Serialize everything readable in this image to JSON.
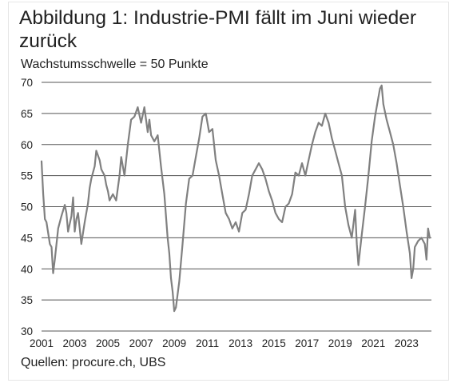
{
  "title": "Abbildung 1: Industrie-PMI fällt im Juni wieder zurück",
  "subtitle": "Wachstumsschwelle = 50 Punkte",
  "source": "Quellen: procure.ch, UBS",
  "colors": {
    "line": "#808080",
    "grid": "#555555",
    "text": "#222222"
  },
  "chart_data": {
    "type": "line",
    "title": "Abbildung 1: Industrie-PMI fällt im Juni wieder zurück",
    "subtitle": "Wachstumsschwelle = 50 Punkte",
    "xlabel": "",
    "ylabel": "",
    "xlim": [
      2001,
      2024.5
    ],
    "ylim": [
      30,
      70
    ],
    "y_ticks": [
      30,
      35,
      40,
      45,
      50,
      55,
      60,
      65,
      70
    ],
    "x_ticks": [
      2001,
      2003,
      2005,
      2007,
      2009,
      2011,
      2013,
      2015,
      2017,
      2019,
      2021,
      2023
    ],
    "grid": "horizontal",
    "legend": "none",
    "series": [
      {
        "x": [
          2001.0,
          2001.1,
          2001.2,
          2001.3,
          2001.5,
          2001.6,
          2001.7,
          2001.8,
          2002.0,
          2002.2,
          2002.4,
          2002.5,
          2002.6,
          2002.8,
          2002.9,
          2003.0,
          2003.1,
          2003.2,
          2003.4,
          2003.6,
          2003.8,
          2003.9,
          2004.0,
          2004.1,
          2004.2,
          2004.3,
          2004.5,
          2004.6,
          2004.8,
          2004.9,
          2005.0,
          2005.1,
          2005.3,
          2005.5,
          2005.7,
          2005.8,
          2006.0,
          2006.2,
          2006.4,
          2006.6,
          2006.8,
          2007.0,
          2007.2,
          2007.4,
          2007.5,
          2007.6,
          2007.8,
          2008.0,
          2008.2,
          2008.4,
          2008.6,
          2008.7,
          2008.8,
          2008.9,
          2009.0,
          2009.1,
          2009.3,
          2009.5,
          2009.7,
          2009.9,
          2010.1,
          2010.3,
          2010.5,
          2010.7,
          2010.9,
          2011.1,
          2011.3,
          2011.5,
          2011.7,
          2011.9,
          2012.1,
          2012.3,
          2012.5,
          2012.7,
          2012.9,
          2013.1,
          2013.3,
          2013.5,
          2013.7,
          2013.9,
          2014.1,
          2014.3,
          2014.5,
          2014.7,
          2014.9,
          2015.1,
          2015.3,
          2015.5,
          2015.7,
          2015.9,
          2016.1,
          2016.3,
          2016.5,
          2016.7,
          2016.9,
          2017.1,
          2017.3,
          2017.5,
          2017.7,
          2017.9,
          2018.1,
          2018.3,
          2018.5,
          2018.7,
          2018.9,
          2019.1,
          2019.3,
          2019.5,
          2019.7,
          2019.9,
          2020.0,
          2020.1,
          2020.3,
          2020.5,
          2020.7,
          2020.9,
          2021.1,
          2021.3,
          2021.4,
          2021.5,
          2021.6,
          2021.8,
          2022.0,
          2022.2,
          2022.4,
          2022.6,
          2022.8,
          2023.0,
          2023.2,
          2023.3,
          2023.4,
          2023.5,
          2023.7,
          2023.9,
          2024.1,
          2024.2,
          2024.3,
          2024.4
        ],
        "values": [
          57.3,
          52.0,
          48.0,
          47.5,
          44.0,
          43.5,
          39.3,
          41.5,
          46.5,
          48.5,
          50.3,
          49.0,
          46.0,
          48.5,
          51.5,
          46.0,
          48.0,
          49.0,
          44.0,
          47.5,
          50.5,
          53.0,
          54.5,
          55.5,
          56.5,
          59.0,
          57.5,
          56.0,
          55.0,
          53.5,
          52.5,
          51.0,
          52.0,
          51.0,
          55.0,
          58.0,
          55.0,
          60.0,
          64.0,
          64.5,
          66.0,
          63.5,
          66.0,
          62.0,
          64.0,
          61.5,
          60.5,
          61.5,
          56.5,
          52.0,
          45.0,
          42.5,
          38.5,
          36.3,
          33.2,
          33.8,
          38.0,
          44.0,
          50.5,
          54.5,
          55.0,
          58.0,
          61.0,
          64.5,
          65.0,
          62.0,
          62.5,
          57.5,
          55.0,
          52.0,
          49.0,
          48.0,
          46.5,
          47.5,
          46.0,
          49.0,
          49.5,
          52.0,
          55.0,
          56.0,
          57.0,
          56.0,
          54.5,
          52.5,
          51.0,
          49.0,
          48.0,
          47.5,
          50.0,
          50.5,
          52.0,
          55.5,
          55.0,
          57.0,
          55.0,
          57.5,
          60.0,
          62.0,
          63.5,
          63.0,
          65.0,
          63.5,
          61.0,
          59.0,
          57.0,
          55.0,
          50.0,
          47.0,
          45.0,
          49.5,
          44.0,
          40.6,
          45.5,
          50.0,
          55.0,
          60.5,
          64.5,
          67.5,
          69.0,
          69.5,
          66.5,
          64.0,
          62.0,
          60.0,
          57.0,
          53.5,
          50.0,
          46.0,
          42.5,
          38.5,
          40.0,
          43.5,
          44.5,
          45.0,
          44.0,
          41.5,
          46.5,
          45.0
        ]
      }
    ]
  }
}
